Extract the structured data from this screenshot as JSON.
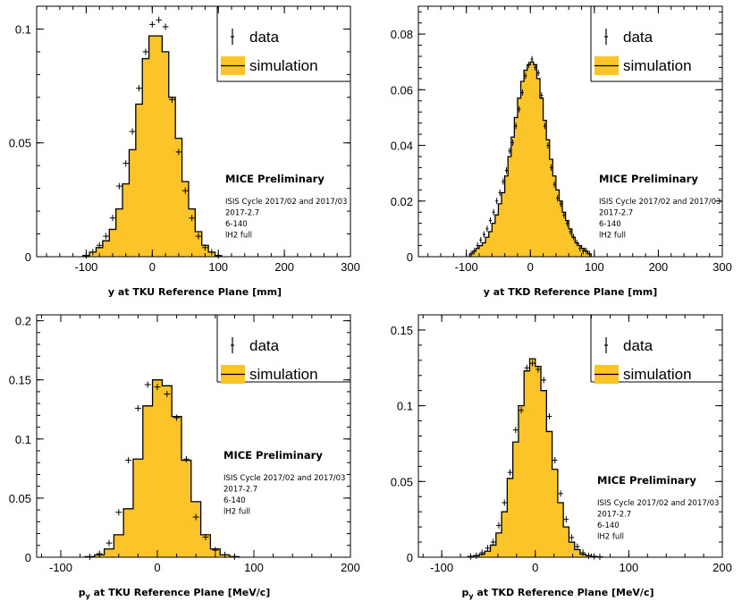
{
  "colors": {
    "fill": "#fbc52a",
    "line": "#000000",
    "axis": "#000000"
  },
  "legend": {
    "data_label": "data",
    "simulation_label": "simulation"
  },
  "annotation": {
    "title": "MICE Preliminary",
    "lines": [
      "ISIS Cycle 2017/02 and 2017/03",
      "2017-2.7",
      "6-140",
      "lH2 full"
    ]
  },
  "chart_data": [
    {
      "type": "histogram",
      "title": "",
      "xlabel_main": "y at TKU Reference Plane [mm]",
      "xlabel_sub": "",
      "xlabel_rest": "",
      "xlim": [
        -175,
        300
      ],
      "ylim": [
        0,
        0.11
      ],
      "xticks": [
        -100,
        0,
        100,
        200,
        300
      ],
      "yticks": [
        0,
        0.05,
        0.1
      ],
      "yticklabels": [
        "0",
        "0.05",
        "0.1"
      ],
      "bin_edges": [
        -105,
        -95,
        -85,
        -75,
        -65,
        -55,
        -45,
        -35,
        -25,
        -15,
        -5,
        5,
        15,
        25,
        35,
        45,
        55,
        65,
        75,
        85,
        95,
        105
      ],
      "simulation": [
        0.0005,
        0.002,
        0.004,
        0.007,
        0.012,
        0.021,
        0.032,
        0.047,
        0.067,
        0.087,
        0.097,
        0.097,
        0.09,
        0.07,
        0.052,
        0.033,
        0.021,
        0.011,
        0.005,
        0.002,
        0.0005
      ],
      "data_x": [
        -100,
        -90,
        -80,
        -70,
        -60,
        -50,
        -40,
        -30,
        -20,
        -10,
        0,
        10,
        20,
        30,
        40,
        50,
        60,
        70,
        80,
        90,
        100
      ],
      "data_y": [
        0.0005,
        0.002,
        0.005,
        0.009,
        0.017,
        0.031,
        0.041,
        0.055,
        0.074,
        0.09,
        0.102,
        0.104,
        0.101,
        0.069,
        0.046,
        0.029,
        0.017,
        0.009,
        0.004,
        0.002,
        0.0005
      ]
    },
    {
      "type": "histogram",
      "title": "",
      "xlabel_main": "y at TKD Reference Plane [mm]",
      "xlabel_sub": "",
      "xlabel_rest": "",
      "xlim": [
        -175,
        300
      ],
      "ylim": [
        0,
        0.09
      ],
      "xticks": [
        -100,
        0,
        100,
        200,
        300
      ],
      "yticks": [
        0,
        0.02,
        0.04,
        0.06,
        0.08
      ],
      "yticklabels": [
        "0",
        "0.02",
        "0.04",
        "0.06",
        "0.08"
      ],
      "bin_edges": [
        -95,
        -90,
        -85,
        -80,
        -75,
        -70,
        -65,
        -60,
        -55,
        -50,
        -45,
        -40,
        -35,
        -30,
        -25,
        -20,
        -15,
        -10,
        -5,
        0,
        5,
        10,
        15,
        20,
        25,
        30,
        35,
        40,
        45,
        50,
        55,
        60,
        65,
        70,
        75,
        80,
        85,
        90,
        95
      ],
      "simulation": [
        0.001,
        0.002,
        0.003,
        0.004,
        0.005,
        0.007,
        0.009,
        0.012,
        0.015,
        0.019,
        0.023,
        0.029,
        0.036,
        0.043,
        0.05,
        0.057,
        0.063,
        0.067,
        0.069,
        0.07,
        0.069,
        0.064,
        0.057,
        0.049,
        0.042,
        0.035,
        0.029,
        0.024,
        0.02,
        0.016,
        0.013,
        0.01,
        0.007,
        0.005,
        0.004,
        0.003,
        0.002,
        0.001
      ],
      "data_x": [
        -92.5,
        -87.5,
        -82.5,
        -77.5,
        -72.5,
        -67.5,
        -62.5,
        -57.5,
        -52.5,
        -47.5,
        -42.5,
        -37.5,
        -32.5,
        -27.5,
        -22.5,
        -17.5,
        -12.5,
        -7.5,
        -2.5,
        2.5,
        7.5,
        12.5,
        17.5,
        22.5,
        27.5,
        32.5,
        37.5,
        42.5,
        47.5,
        52.5,
        57.5,
        62.5,
        67.5,
        72.5,
        77.5,
        82.5,
        87.5,
        92.5
      ],
      "data_y": [
        0.001,
        0.002,
        0.004,
        0.006,
        0.008,
        0.01,
        0.013,
        0.016,
        0.02,
        0.023,
        0.027,
        0.031,
        0.038,
        0.041,
        0.047,
        0.053,
        0.059,
        0.065,
        0.069,
        0.071,
        0.068,
        0.066,
        0.058,
        0.047,
        0.04,
        0.032,
        0.026,
        0.021,
        0.019,
        0.015,
        0.012,
        0.009,
        0.007,
        0.005,
        0.003,
        0.002,
        0.002,
        0.001
      ]
    },
    {
      "type": "histogram",
      "title": "",
      "xlabel_main": "p",
      "xlabel_sub": "y",
      "xlabel_rest": " at TKU Reference Plane [MeV/c]",
      "xlim": [
        -125,
        200
      ],
      "ylim": [
        0,
        0.205
      ],
      "xticks": [
        -100,
        0,
        100,
        200
      ],
      "yticks": [
        0,
        0.05,
        0.1,
        0.15,
        0.2
      ],
      "yticklabels": [
        "0",
        "0.05",
        "0.1",
        "0.15",
        "0.2"
      ],
      "bin_edges": [
        -75,
        -65,
        -55,
        -45,
        -35,
        -25,
        -15,
        -5,
        5,
        15,
        25,
        35,
        45,
        55,
        65,
        75,
        85
      ],
      "simulation": [
        0.0005,
        0.002,
        0.007,
        0.019,
        0.041,
        0.083,
        0.128,
        0.15,
        0.145,
        0.119,
        0.082,
        0.047,
        0.019,
        0.007,
        0.002,
        0.0005
      ],
      "data_x": [
        -70,
        -60,
        -50,
        -40,
        -30,
        -20,
        -10,
        0,
        10,
        20,
        30,
        40,
        50,
        60,
        70,
        80
      ],
      "data_y": [
        0.0005,
        0.003,
        0.012,
        0.038,
        0.082,
        0.126,
        0.146,
        0.144,
        0.138,
        0.118,
        0.083,
        0.034,
        0.017,
        0.006,
        0.002,
        0.0005
      ]
    },
    {
      "type": "histogram",
      "title": "",
      "xlabel_main": "p",
      "xlabel_sub": "y",
      "xlabel_rest": " at TKD Reference Plane [MeV/c]",
      "xlim": [
        -125,
        200
      ],
      "ylim": [
        0,
        0.16
      ],
      "xticks": [
        -100,
        0,
        100,
        200
      ],
      "yticks": [
        0,
        0.05,
        0.1,
        0.15
      ],
      "yticklabels": [
        "0",
        "0.05",
        "0.1",
        "0.15"
      ],
      "bin_edges": [
        -72,
        -66,
        -60,
        -54,
        -48,
        -42,
        -36,
        -30,
        -24,
        -18,
        -12,
        -6,
        0,
        6,
        12,
        18,
        24,
        30,
        36,
        42,
        48,
        54,
        60,
        66,
        72
      ],
      "simulation": [
        0.0005,
        0.001,
        0.002,
        0.004,
        0.008,
        0.016,
        0.03,
        0.052,
        0.076,
        0.1,
        0.123,
        0.131,
        0.126,
        0.11,
        0.083,
        0.058,
        0.036,
        0.02,
        0.01,
        0.005,
        0.002,
        0.001,
        0.0005,
        0.0002
      ],
      "data_x": [
        -69,
        -63,
        -57,
        -51,
        -45,
        -39,
        -33,
        -27,
        -21,
        -15,
        -9,
        -3,
        3,
        9,
        15,
        21,
        27,
        33,
        39,
        45,
        51,
        57,
        63,
        69
      ],
      "data_y": [
        0.0005,
        0.001,
        0.003,
        0.006,
        0.01,
        0.021,
        0.036,
        0.056,
        0.084,
        0.097,
        0.125,
        0.128,
        0.124,
        0.117,
        0.093,
        0.064,
        0.042,
        0.025,
        0.013,
        0.007,
        0.003,
        0.001,
        0.0005,
        0.0002
      ]
    }
  ]
}
